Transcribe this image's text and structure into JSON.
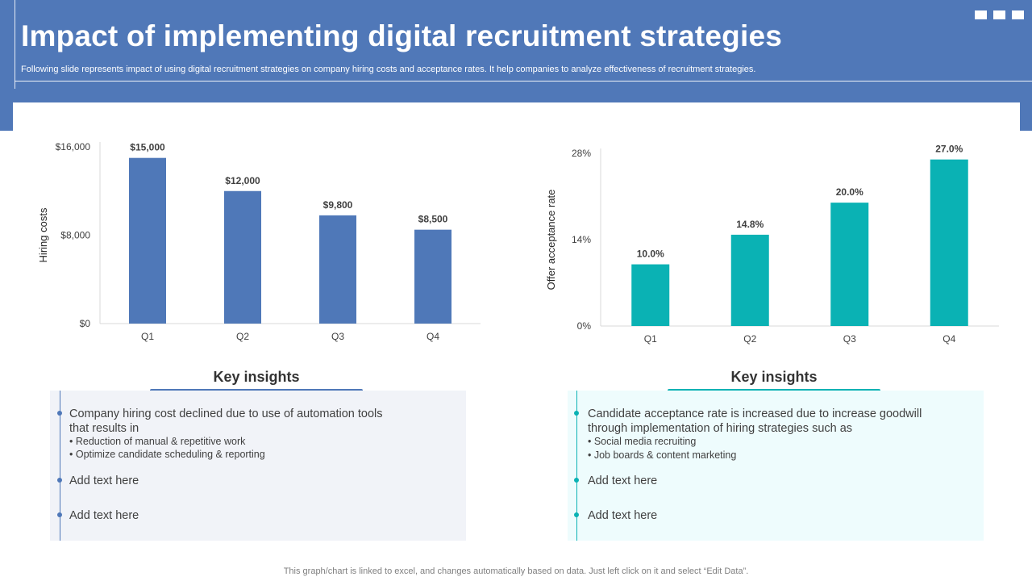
{
  "header": {
    "title": "Impact of implementing digital recruitment strategies",
    "subtitle": "Following slide represents impact of using digital recruitment strategies on company hiring costs and acceptance rates. It help companies to analyze effectiveness of recruitment strategies."
  },
  "chart_data": [
    {
      "type": "bar",
      "categories": [
        "Q1",
        "Q2",
        "Q3",
        "Q4"
      ],
      "values": [
        15000,
        12000,
        9800,
        8500
      ],
      "value_labels": [
        "$15,000",
        "$12,000",
        "$9,800",
        "$8,500"
      ],
      "ylabel": "Hiring costs",
      "ylim": [
        0,
        16000
      ],
      "y_ticks": [
        0,
        8000,
        16000
      ],
      "y_tick_labels": [
        "$0",
        "$8,000",
        "$16,000"
      ],
      "color": "#4f78b8",
      "grid": false
    },
    {
      "type": "bar",
      "categories": [
        "Q1",
        "Q2",
        "Q3",
        "Q4"
      ],
      "values": [
        10.0,
        14.8,
        20.0,
        27.0
      ],
      "value_labels": [
        "10.0%",
        "14.8%",
        "20.0%",
        "27.0%"
      ],
      "ylabel": "Offer acceptance rate",
      "ylim": [
        0,
        28
      ],
      "y_ticks": [
        0,
        14,
        28
      ],
      "y_tick_labels": [
        "0%",
        "14%",
        "28%"
      ],
      "color": "#0ab2b4",
      "grid": false
    }
  ],
  "insights_left": {
    "title": "Key insights",
    "accent": "#4f78b8",
    "background": "#f1f3f8",
    "main": "Company hiring cost declined due to use of automation tools that results in",
    "sub_items": [
      "•   Reduction of manual & repetitive work",
      "•   Optimize candidate scheduling & reporting"
    ],
    "extra": [
      "Add text here",
      "Add text here"
    ]
  },
  "insights_right": {
    "title": "Key insights",
    "accent": "#0ab2b4",
    "background": "#eefcfd",
    "main": "Candidate acceptance rate is increased due to increase goodwill through implementation of hiring strategies such as",
    "sub_items": [
      "•    Social media recruiting",
      "•   Job boards & content marketing"
    ],
    "extra": [
      "Add text here",
      "Add text here"
    ]
  },
  "footer": {
    "text": "This graph/chart is linked to excel,  and changes automatically based on data. Just left click on it and select “Edit Data”."
  }
}
